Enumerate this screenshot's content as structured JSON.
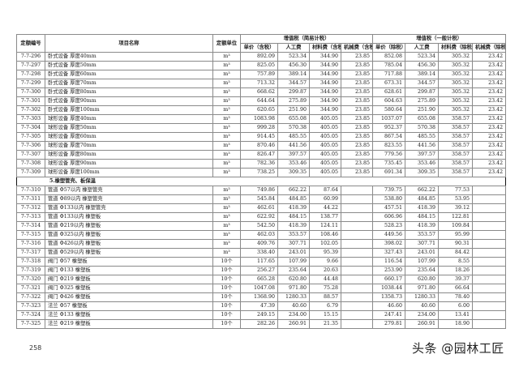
{
  "header": {
    "code": "定额编号",
    "name": "项目名称",
    "unit": "定额单位",
    "group_simple": "增值税（简易计税）",
    "group_general": "增值税（一般计税）",
    "simple_cols": [
      "单价（含税）",
      "人工费",
      "材料费（含税）",
      "机械费（含税）"
    ],
    "general_cols": [
      "单价（除税）",
      "人工费",
      "材料费（除税）",
      "机械费（除税）"
    ]
  },
  "rows": [
    {
      "code": "7-7-296",
      "name": "卧式设备  厚度40mm",
      "unit": "m³",
      "v": [
        "892.09",
        "523.34",
        "344.90",
        "23.85",
        "852.08",
        "523.34",
        "305.32",
        "23.42"
      ]
    },
    {
      "code": "7-7-297",
      "name": "卧式设备  厚度50mm",
      "unit": "m³",
      "v": [
        "825.05",
        "456.30",
        "344.90",
        "23.85",
        "785.04",
        "456.30",
        "305.32",
        "23.42"
      ]
    },
    {
      "code": "7-7-298",
      "name": "卧式设备  厚度60mm",
      "unit": "m³",
      "v": [
        "757.89",
        "389.14",
        "344.90",
        "23.85",
        "717.88",
        "389.14",
        "305.32",
        "23.42"
      ]
    },
    {
      "code": "7-7-299",
      "name": "卧式设备  厚度70mm",
      "unit": "m³",
      "v": [
        "713.32",
        "344.57",
        "344.90",
        "23.85",
        "673.31",
        "344.57",
        "305.32",
        "23.42"
      ]
    },
    {
      "code": "7-7-300",
      "name": "卧式设备  厚度80mm",
      "unit": "m³",
      "v": [
        "668.62",
        "299.87",
        "344.90",
        "23.85",
        "628.61",
        "299.87",
        "305.32",
        "23.42"
      ]
    },
    {
      "code": "7-7-301",
      "name": "卧式设备  厚度90mm",
      "unit": "m³",
      "v": [
        "644.64",
        "275.89",
        "344.90",
        "23.85",
        "604.63",
        "275.89",
        "305.32",
        "23.42"
      ]
    },
    {
      "code": "7-7-302",
      "name": "卧式设备  厚度100mm",
      "unit": "m³",
      "v": [
        "620.65",
        "251.90",
        "344.90",
        "23.85",
        "580.64",
        "251.90",
        "305.32",
        "23.42"
      ]
    },
    {
      "code": "7-7-303",
      "name": "球形设备  厚度40mm",
      "unit": "m³",
      "v": [
        "1083.98",
        "655.08",
        "405.05",
        "23.85",
        "1037.07",
        "655.08",
        "358.57",
        "23.42"
      ]
    },
    {
      "code": "7-7-304",
      "name": "球形设备  厚度50mm",
      "unit": "m³",
      "v": [
        "999.28",
        "570.38",
        "405.05",
        "23.85",
        "952.37",
        "570.38",
        "358.57",
        "23.42"
      ]
    },
    {
      "code": "7-7-305",
      "name": "球形设备  厚度60mm",
      "unit": "m³",
      "v": [
        "914.45",
        "485.55",
        "405.05",
        "23.85",
        "867.54",
        "485.55",
        "358.57",
        "23.42"
      ]
    },
    {
      "code": "7-7-306",
      "name": "球形设备  厚度70mm",
      "unit": "m³",
      "v": [
        "870.46",
        "441.56",
        "405.05",
        "23.85",
        "823.55",
        "441.56",
        "358.57",
        "23.42"
      ]
    },
    {
      "code": "7-7-307",
      "name": "球形设备  厚度80mm",
      "unit": "m³",
      "v": [
        "826.47",
        "397.57",
        "405.05",
        "23.85",
        "779.56",
        "397.57",
        "358.57",
        "23.42"
      ]
    },
    {
      "code": "7-7-308",
      "name": "球形设备  厚度90mm",
      "unit": "m³",
      "v": [
        "782.36",
        "353.46",
        "405.05",
        "23.85",
        "735.45",
        "353.46",
        "358.57",
        "23.42"
      ]
    },
    {
      "code": "7-7-309",
      "name": "球形设备  厚度100mm",
      "unit": "m³",
      "v": [
        "738.25",
        "309.35",
        "405.05",
        "23.85",
        "691.34",
        "309.35",
        "358.57",
        "23.42"
      ]
    },
    {
      "section": "5.橡塑管壳、板保温"
    },
    {
      "code": "7-7-310",
      "name": "管道  Φ57以内  橡塑管壳",
      "unit": "m³",
      "v": [
        "749.86",
        "662.22",
        "87.64",
        "",
        "739.75",
        "662.22",
        "77.53",
        ""
      ]
    },
    {
      "code": "7-7-311",
      "name": "管道  Φ89以内  橡塑管壳",
      "unit": "m³",
      "v": [
        "545.84",
        "484.85",
        "60.99",
        "",
        "538.80",
        "484.85",
        "53.95",
        ""
      ]
    },
    {
      "code": "7-7-312",
      "name": "管道  Φ133以内  橡塑管壳",
      "unit": "m³",
      "v": [
        "462.61",
        "418.39",
        "44.22",
        "",
        "457.51",
        "418.39",
        "39.12",
        ""
      ]
    },
    {
      "code": "7-7-313",
      "name": "管道  Φ133以内  橡塑板",
      "unit": "m³",
      "v": [
        "622.92",
        "484.15",
        "138.77",
        "",
        "606.96",
        "484.15",
        "122.81",
        ""
      ]
    },
    {
      "code": "7-7-314",
      "name": "管道  Φ219以内  橡塑板",
      "unit": "m³",
      "v": [
        "542.50",
        "418.39",
        "124.11",
        "",
        "528.23",
        "418.39",
        "109.84",
        ""
      ]
    },
    {
      "code": "7-7-315",
      "name": "管道  Φ325以内  橡塑板",
      "unit": "m³",
      "v": [
        "462.03",
        "353.57",
        "108.46",
        "",
        "449.56",
        "353.57",
        "95.99",
        ""
      ]
    },
    {
      "code": "7-7-316",
      "name": "管道  Φ426以内  橡塑板",
      "unit": "m³",
      "v": [
        "409.76",
        "307.71",
        "102.05",
        "",
        "398.02",
        "307.71",
        "90.31",
        ""
      ]
    },
    {
      "code": "7-7-317",
      "name": "管道  Φ529以内  橡塑板",
      "unit": "m³",
      "v": [
        "338.40",
        "243.01",
        "95.39",
        "",
        "327.43",
        "243.01",
        "84.42",
        ""
      ]
    },
    {
      "code": "7-7-318",
      "name": "阀门  Φ57  橡塑板",
      "unit": "10个",
      "v": [
        "117.65",
        "107.99",
        "9.66",
        "",
        "116.54",
        "107.99",
        "8.55",
        ""
      ]
    },
    {
      "code": "7-7-319",
      "name": "阀门  Φ133  橡塑板",
      "unit": "10个",
      "v": [
        "256.27",
        "235.64",
        "20.63",
        "",
        "253.90",
        "235.64",
        "18.26",
        ""
      ]
    },
    {
      "code": "7-7-320",
      "name": "阀门  Φ219  橡塑板",
      "unit": "10个",
      "v": [
        "665.28",
        "620.80",
        "44.48",
        "",
        "660.17",
        "620.80",
        "39.37",
        ""
      ]
    },
    {
      "code": "7-7-321",
      "name": "阀门  Φ325  橡塑板",
      "unit": "10个",
      "v": [
        "1047.08",
        "971.80",
        "75.28",
        "",
        "1038.44",
        "971.80",
        "66.64",
        ""
      ]
    },
    {
      "code": "7-7-322",
      "name": "阀门  Φ426  橡塑板",
      "unit": "10个",
      "v": [
        "1368.90",
        "1280.33",
        "88.57",
        "",
        "1358.73",
        "1280.33",
        "78.40",
        ""
      ]
    },
    {
      "code": "7-7-323",
      "name": "法兰  Φ57  橡塑板",
      "unit": "10个",
      "v": [
        "47.39",
        "40.60",
        "6.79",
        "",
        "46.60",
        "40.60",
        "6.00",
        ""
      ]
    },
    {
      "code": "7-7-324",
      "name": "法兰  Φ133  橡塑板",
      "unit": "10个",
      "v": [
        "249.15",
        "234.00",
        "15.15",
        "",
        "247.41",
        "234.00",
        "13.41",
        ""
      ]
    },
    {
      "code": "7-7-325",
      "name": "法兰  Φ219  橡塑板",
      "unit": "10个",
      "v": [
        "282.26",
        "260.91",
        "21.35",
        "",
        "279.81",
        "260.91",
        "18.90",
        ""
      ]
    }
  ],
  "footer": {
    "page_number": "258",
    "watermark": "头条 @园林工匠"
  }
}
